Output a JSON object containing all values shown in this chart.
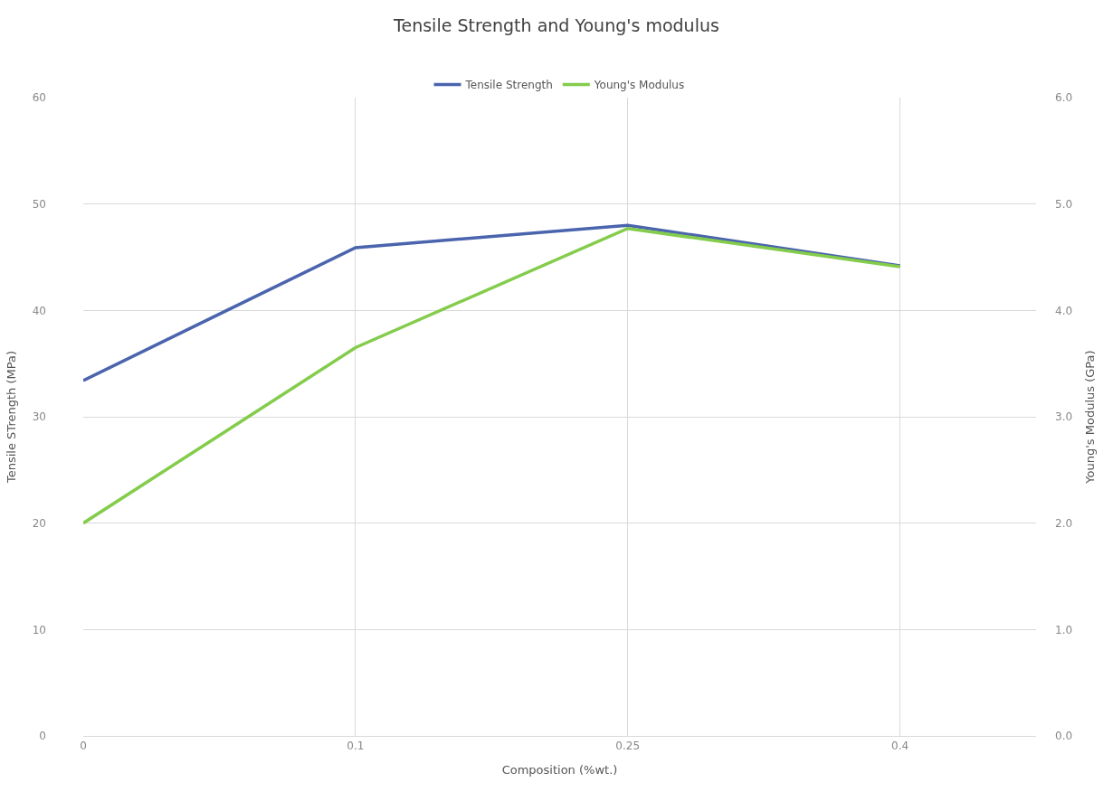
{
  "chart_data": {
    "type": "line",
    "title": "Tensile Strength and Young's modulus",
    "xlabel": "Composition (%wt.)",
    "ylabel": "Tensile STrength (MPa)",
    "y2label": "Young's Modulus (GPa)",
    "categories": [
      "0",
      "0.1",
      "0.25",
      "0.4"
    ],
    "series": [
      {
        "name": "Tensile Strength",
        "color": "#4a64ad",
        "values": [
          33.4,
          45.9,
          48.0,
          44.2
        ]
      },
      {
        "name": "Young's Modulus",
        "color": "#84cc4c",
        "values": [
          2.0,
          3.65,
          4.77,
          4.41
        ],
        "axis": "y2"
      }
    ],
    "ylim": [
      0,
      60
    ],
    "yticks": [
      0,
      10,
      20,
      30,
      40,
      50,
      60
    ],
    "y2lim": [
      0,
      6
    ],
    "y2ticks": [
      {
        "value": 0,
        "label": "0.0"
      },
      {
        "value": 1,
        "label": "1.0"
      },
      {
        "value": 2,
        "label": "2.0"
      },
      {
        "value": 3,
        "label": "3.0"
      },
      {
        "value": 4,
        "label": "4.0"
      },
      {
        "value": 5,
        "label": "5.0"
      },
      {
        "value": 6,
        "label": "6.0"
      }
    ],
    "grid": true,
    "legend": "top",
    "marker": "none",
    "line_style": "solid"
  }
}
